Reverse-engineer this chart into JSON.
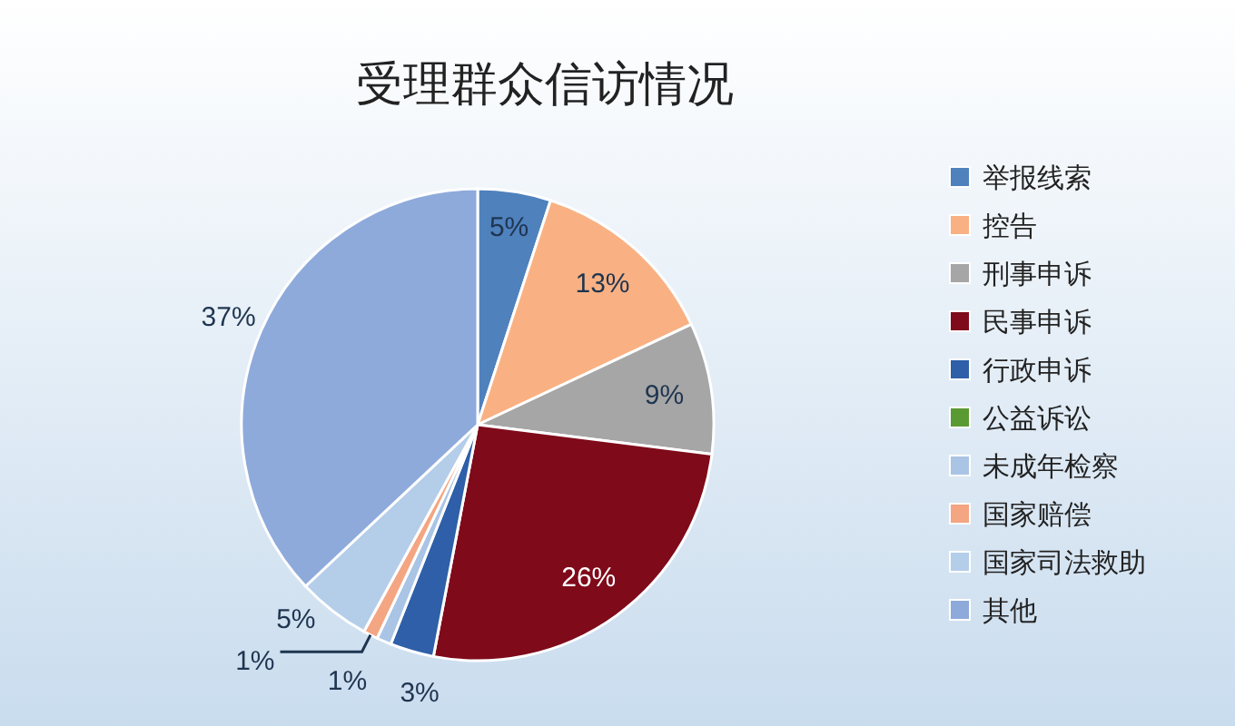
{
  "chart_data": {
    "type": "pie",
    "title": "受理群众信访情况",
    "categories": [
      "举报线索",
      "控告",
      "刑事申诉",
      "民事申诉",
      "行政申诉",
      "公益诉讼",
      "未成年检察",
      "国家赔偿",
      "国家司法救助",
      "其他"
    ],
    "values": [
      5,
      13,
      9,
      26,
      3,
      0,
      1,
      1,
      5,
      37
    ],
    "value_labels": [
      "5%",
      "13%",
      "9%",
      "26%",
      "3%",
      null,
      "1%",
      "1%",
      "5%",
      "37%"
    ],
    "colors": [
      "#4f81bd",
      "#f9b183",
      "#a6a6a6",
      "#7f0a1a",
      "#2e5fa8",
      "#5a9a32",
      "#a9c4e4",
      "#f4a582",
      "#b4cde9",
      "#8eaadb"
    ],
    "legend": "right"
  }
}
